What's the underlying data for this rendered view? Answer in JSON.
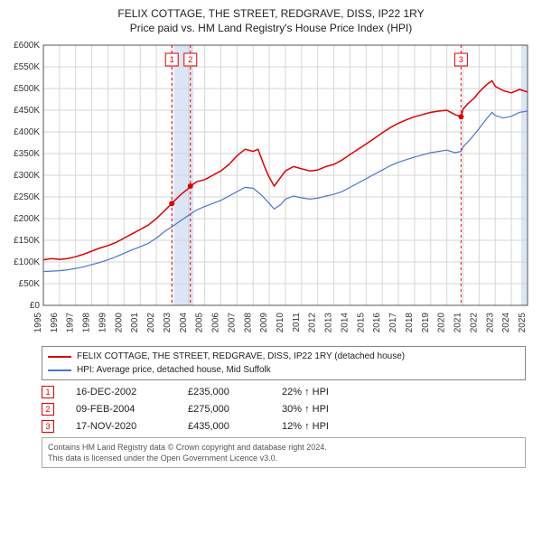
{
  "title_line1": "FELIX COTTAGE, THE STREET, REDGRAVE, DISS, IP22 1RY",
  "title_line2": "Price paid vs. HM Land Registry's House Price Index (HPI)",
  "chart": {
    "background_color": "#ffffff",
    "grid_color": "#d6d6d6",
    "axis_color": "#555555",
    "tick_font_size": 10,
    "tick_color": "#333333",
    "x_years": [
      1995,
      1996,
      1997,
      1998,
      1999,
      2000,
      2001,
      2002,
      2003,
      2004,
      2005,
      2006,
      2007,
      2008,
      2009,
      2010,
      2011,
      2012,
      2013,
      2014,
      2015,
      2016,
      2017,
      2018,
      2019,
      2020,
      2021,
      2022,
      2023,
      2024,
      2025
    ],
    "y_ticks": [
      0,
      50000,
      100000,
      150000,
      200000,
      250000,
      300000,
      350000,
      400000,
      450000,
      500000,
      550000,
      600000
    ],
    "y_tick_labels": [
      "£0",
      "£50K",
      "£100K",
      "£150K",
      "£200K",
      "£250K",
      "£300K",
      "£350K",
      "£400K",
      "£450K",
      "£500K",
      "£550K",
      "£600K"
    ],
    "y_min": 0,
    "y_max": 600000,
    "shade_color": "#dbe5f5",
    "shade_ranges": [
      {
        "x0": 2003.1,
        "x1": 2004.3
      },
      {
        "x0": 2024.6,
        "x1": 2025.4
      }
    ],
    "marker_line_color": "#ee0000",
    "marker_line_dash": "3,3",
    "series_property": {
      "color": "#dd0000",
      "width": 1.5,
      "points": [
        [
          1995.0,
          105000
        ],
        [
          1995.5,
          108000
        ],
        [
          1996.0,
          106000
        ],
        [
          1996.5,
          108000
        ],
        [
          1997.0,
          112000
        ],
        [
          1997.5,
          118000
        ],
        [
          1998.0,
          125000
        ],
        [
          1998.5,
          132000
        ],
        [
          1999.0,
          138000
        ],
        [
          1999.5,
          145000
        ],
        [
          2000.0,
          155000
        ],
        [
          2000.5,
          165000
        ],
        [
          2001.0,
          175000
        ],
        [
          2001.5,
          185000
        ],
        [
          2002.0,
          200000
        ],
        [
          2002.5,
          218000
        ],
        [
          2002.96,
          235000
        ],
        [
          2003.5,
          255000
        ],
        [
          2004.0,
          270000
        ],
        [
          2004.11,
          275000
        ],
        [
          2004.5,
          285000
        ],
        [
          2005.0,
          290000
        ],
        [
          2005.5,
          300000
        ],
        [
          2006.0,
          310000
        ],
        [
          2006.5,
          325000
        ],
        [
          2007.0,
          345000
        ],
        [
          2007.5,
          360000
        ],
        [
          2008.0,
          355000
        ],
        [
          2008.3,
          360000
        ],
        [
          2008.7,
          320000
        ],
        [
          2009.0,
          295000
        ],
        [
          2009.3,
          275000
        ],
        [
          2009.7,
          295000
        ],
        [
          2010.0,
          310000
        ],
        [
          2010.5,
          320000
        ],
        [
          2011.0,
          315000
        ],
        [
          2011.5,
          310000
        ],
        [
          2012.0,
          312000
        ],
        [
          2012.5,
          320000
        ],
        [
          2013.0,
          325000
        ],
        [
          2013.5,
          335000
        ],
        [
          2014.0,
          348000
        ],
        [
          2014.5,
          360000
        ],
        [
          2015.0,
          372000
        ],
        [
          2015.5,
          385000
        ],
        [
          2016.0,
          398000
        ],
        [
          2016.5,
          410000
        ],
        [
          2017.0,
          420000
        ],
        [
          2017.5,
          428000
        ],
        [
          2018.0,
          435000
        ],
        [
          2018.5,
          440000
        ],
        [
          2019.0,
          445000
        ],
        [
          2019.5,
          448000
        ],
        [
          2020.0,
          450000
        ],
        [
          2020.5,
          440000
        ],
        [
          2020.88,
          435000
        ],
        [
          2021.0,
          452000
        ],
        [
          2021.3,
          465000
        ],
        [
          2021.7,
          478000
        ],
        [
          2022.0,
          492000
        ],
        [
          2022.5,
          510000
        ],
        [
          2022.8,
          518000
        ],
        [
          2023.0,
          505000
        ],
        [
          2023.5,
          495000
        ],
        [
          2024.0,
          490000
        ],
        [
          2024.5,
          498000
        ],
        [
          2025.0,
          492000
        ]
      ]
    },
    "series_hpi": {
      "color": "#4a77c9",
      "width": 1.2,
      "points": [
        [
          1995.0,
          78000
        ],
        [
          1995.5,
          79000
        ],
        [
          1996.0,
          80000
        ],
        [
          1996.5,
          82000
        ],
        [
          1997.0,
          85000
        ],
        [
          1997.5,
          89000
        ],
        [
          1998.0,
          94000
        ],
        [
          1998.5,
          99000
        ],
        [
          1999.0,
          105000
        ],
        [
          1999.5,
          112000
        ],
        [
          2000.0,
          120000
        ],
        [
          2000.5,
          128000
        ],
        [
          2001.0,
          135000
        ],
        [
          2001.5,
          143000
        ],
        [
          2002.0,
          155000
        ],
        [
          2002.5,
          170000
        ],
        [
          2003.0,
          182000
        ],
        [
          2003.5,
          195000
        ],
        [
          2004.0,
          208000
        ],
        [
          2004.5,
          220000
        ],
        [
          2005.0,
          228000
        ],
        [
          2005.5,
          235000
        ],
        [
          2006.0,
          242000
        ],
        [
          2006.5,
          252000
        ],
        [
          2007.0,
          262000
        ],
        [
          2007.5,
          272000
        ],
        [
          2008.0,
          270000
        ],
        [
          2008.5,
          255000
        ],
        [
          2009.0,
          235000
        ],
        [
          2009.3,
          222000
        ],
        [
          2009.7,
          232000
        ],
        [
          2010.0,
          245000
        ],
        [
          2010.5,
          252000
        ],
        [
          2011.0,
          248000
        ],
        [
          2011.5,
          245000
        ],
        [
          2012.0,
          247000
        ],
        [
          2012.5,
          252000
        ],
        [
          2013.0,
          256000
        ],
        [
          2013.5,
          262000
        ],
        [
          2014.0,
          272000
        ],
        [
          2014.5,
          282000
        ],
        [
          2015.0,
          292000
        ],
        [
          2015.5,
          302000
        ],
        [
          2016.0,
          312000
        ],
        [
          2016.5,
          322000
        ],
        [
          2017.0,
          330000
        ],
        [
          2017.5,
          336000
        ],
        [
          2018.0,
          342000
        ],
        [
          2018.5,
          347000
        ],
        [
          2019.0,
          352000
        ],
        [
          2019.5,
          355000
        ],
        [
          2020.0,
          358000
        ],
        [
          2020.5,
          352000
        ],
        [
          2020.88,
          355000
        ],
        [
          2021.0,
          365000
        ],
        [
          2021.5,
          385000
        ],
        [
          2022.0,
          408000
        ],
        [
          2022.5,
          432000
        ],
        [
          2022.8,
          445000
        ],
        [
          2023.0,
          438000
        ],
        [
          2023.5,
          432000
        ],
        [
          2024.0,
          436000
        ],
        [
          2024.5,
          445000
        ],
        [
          2025.0,
          448000
        ]
      ]
    },
    "sale_markers": [
      {
        "id": "1",
        "x": 2002.96,
        "y": 235000
      },
      {
        "id": "2",
        "x": 2004.11,
        "y": 275000
      },
      {
        "id": "3",
        "x": 2020.88,
        "y": 435000
      }
    ],
    "dot_fill": "#dd0000",
    "dot_radius": 3,
    "badge_fill": "#ffffff",
    "badge_stroke": "#dd0000",
    "badge_text_color": "#dd0000"
  },
  "legend": {
    "items": [
      {
        "color": "#dd0000",
        "label": "FELIX COTTAGE, THE STREET, REDGRAVE, DISS, IP22 1RY (detached house)"
      },
      {
        "color": "#4a77c9",
        "label": "HPI: Average price, detached house, Mid Suffolk"
      }
    ]
  },
  "markers_table": [
    {
      "id": "1",
      "date": "16-DEC-2002",
      "price": "£235,000",
      "diff": "22% ↑ HPI"
    },
    {
      "id": "2",
      "date": "09-FEB-2004",
      "price": "£275,000",
      "diff": "30% ↑ HPI"
    },
    {
      "id": "3",
      "date": "17-NOV-2020",
      "price": "£435,000",
      "diff": "12% ↑ HPI"
    }
  ],
  "footer_line1": "Contains HM Land Registry data © Crown copyright and database right 2024.",
  "footer_line2": "This data is licensed under the Open Government Licence v3.0."
}
